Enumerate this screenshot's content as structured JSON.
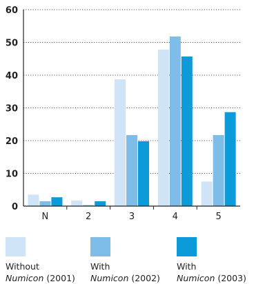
{
  "chart_data": {
    "type": "bar",
    "categories": [
      "N",
      "2",
      "3",
      "4",
      "5"
    ],
    "series": [
      {
        "name": "Without Numicon (2001)",
        "line1": "Without",
        "emph": "Numicon",
        "suffix": " (2001)",
        "color": "#cfe4f6",
        "values": [
          3.5,
          1.7,
          38.7,
          47.8,
          7.5
        ]
      },
      {
        "name": "With Numicon (2002)",
        "line1": "With",
        "emph": "Numicon",
        "suffix": " (2002)",
        "color": "#7ebde8",
        "values": [
          1.5,
          0.3,
          21.7,
          51.8,
          21.7
        ]
      },
      {
        "name": "With Numicon (2003)",
        "line1": "With",
        "emph": "Numicon",
        "suffix": " (2003)",
        "color": "#0d9ad9",
        "values": [
          2.7,
          1.5,
          19.8,
          45.7,
          28.7
        ]
      }
    ],
    "yticks": [
      0,
      10,
      20,
      30,
      40,
      50,
      60
    ],
    "ylim": [
      0,
      60
    ],
    "grid": "horizontal dotted",
    "legend_position": "bottom",
    "title": "",
    "xlabel": "",
    "ylabel": ""
  }
}
